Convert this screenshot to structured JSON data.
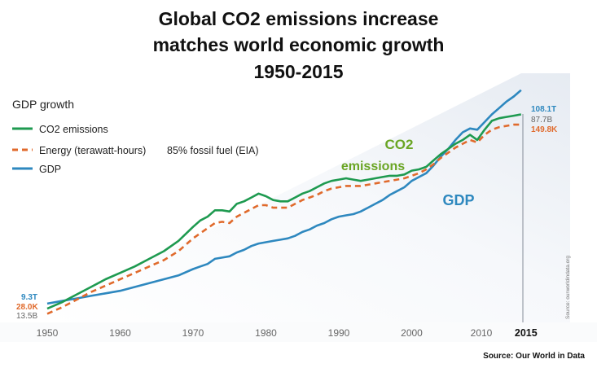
{
  "chart_data": {
    "type": "line",
    "title": [
      "Global CO2 emissions increase",
      "matches world economic growth",
      "1950-2015"
    ],
    "subtitle": "GDP growth",
    "source": "Source: Our World in Data",
    "vertical_watermark": "Source: ourworldindata.org",
    "x_ticks": [
      "1950",
      "1960",
      "1970",
      "1980",
      "1990",
      "2000",
      "2010",
      "2015"
    ],
    "xlim": [
      1950,
      2015
    ],
    "legend": {
      "placement": "top-left",
      "entries": [
        "CO2 emissions",
        "Energy (terawatt-hours)",
        "GDP"
      ],
      "note": "85% fossil fuel (EIA)"
    },
    "annotations": {
      "co2_line1": "CO2",
      "co2_line2": "emissions",
      "gdp": "GDP"
    },
    "start_labels": {
      "gdp": "9.3T",
      "energy": "28.0K",
      "co2": "13.5B"
    },
    "end_labels": {
      "gdp": "108.1T",
      "co2": "87.7B",
      "energy": "149.8K"
    },
    "series": [
      {
        "name": "CO2 emissions",
        "color": "#1e9a50",
        "dash": "none",
        "x": [
          1950,
          1952,
          1954,
          1956,
          1958,
          1960,
          1962,
          1964,
          1966,
          1968,
          1970,
          1971,
          1972,
          1973,
          1974,
          1975,
          1976,
          1977,
          1978,
          1979,
          1980,
          1981,
          1982,
          1983,
          1984,
          1985,
          1986,
          1987,
          1988,
          1989,
          1990,
          1991,
          1992,
          1993,
          1994,
          1995,
          1996,
          1997,
          1998,
          1999,
          2000,
          2001,
          2002,
          2003,
          2004,
          2005,
          2006,
          2007,
          2008,
          2009,
          2010,
          2011,
          2012,
          2013,
          2014,
          2015
        ],
        "values": [
          5,
          10,
          16,
          22,
          28,
          33,
          38,
          44,
          50,
          58,
          69,
          74,
          77,
          82,
          82,
          81,
          87,
          89,
          92,
          95,
          93,
          90,
          89,
          89,
          92,
          95,
          97,
          100,
          103,
          105,
          106,
          107,
          106,
          105,
          106,
          107,
          108,
          109,
          109,
          110,
          113,
          114,
          116,
          121,
          126,
          130,
          134,
          137,
          141,
          137,
          145,
          152,
          154,
          155,
          156,
          157
        ]
      },
      {
        "name": "Energy (terawatt-hours)",
        "color": "#e06a2c",
        "dash": "7,5",
        "x": [
          1950,
          1952,
          1954,
          1956,
          1958,
          1960,
          1962,
          1964,
          1966,
          1968,
          1970,
          1971,
          1972,
          1973,
          1974,
          1975,
          1976,
          1977,
          1978,
          1979,
          1980,
          1981,
          1982,
          1983,
          1984,
          1985,
          1986,
          1987,
          1988,
          1989,
          1990,
          1991,
          1992,
          1993,
          1994,
          1995,
          1996,
          1997,
          1998,
          1999,
          2000,
          2001,
          2002,
          2003,
          2004,
          2005,
          2006,
          2007,
          2008,
          2009,
          2010,
          2011,
          2012,
          2013,
          2014,
          2015
        ],
        "values": [
          1,
          6,
          12,
          18,
          23,
          28,
          33,
          38,
          43,
          50,
          60,
          64,
          68,
          72,
          73,
          72,
          77,
          80,
          83,
          86,
          86,
          84,
          84,
          84,
          87,
          90,
          92,
          94,
          97,
          99,
          100,
          101,
          101,
          101,
          102,
          103,
          104,
          105,
          106,
          107,
          109,
          111,
          114,
          118,
          123,
          127,
          131,
          134,
          137,
          135,
          141,
          145,
          147,
          148,
          149,
          149
        ]
      },
      {
        "name": "GDP",
        "color": "#2e88bf",
        "dash": "none",
        "x": [
          1950,
          1952,
          1954,
          1956,
          1958,
          1960,
          1962,
          1964,
          1966,
          1968,
          1970,
          1971,
          1972,
          1973,
          1974,
          1975,
          1976,
          1977,
          1978,
          1979,
          1980,
          1981,
          1982,
          1983,
          1984,
          1985,
          1986,
          1987,
          1988,
          1989,
          1990,
          1991,
          1992,
          1993,
          1994,
          1995,
          1996,
          1997,
          1998,
          1999,
          2000,
          2001,
          2002,
          2003,
          2004,
          2005,
          2006,
          2007,
          2008,
          2009,
          2010,
          2011,
          2012,
          2013,
          2014,
          2015
        ],
        "values": [
          9,
          11,
          13,
          15,
          17,
          19,
          22,
          25,
          28,
          31,
          36,
          38,
          40,
          44,
          45,
          46,
          49,
          51,
          54,
          56,
          57,
          58,
          59,
          60,
          62,
          65,
          67,
          70,
          72,
          75,
          77,
          78,
          79,
          81,
          84,
          87,
          90,
          94,
          97,
          100,
          105,
          108,
          111,
          117,
          124,
          130,
          137,
          143,
          146,
          145,
          151,
          157,
          162,
          167,
          171,
          176
        ]
      }
    ]
  }
}
